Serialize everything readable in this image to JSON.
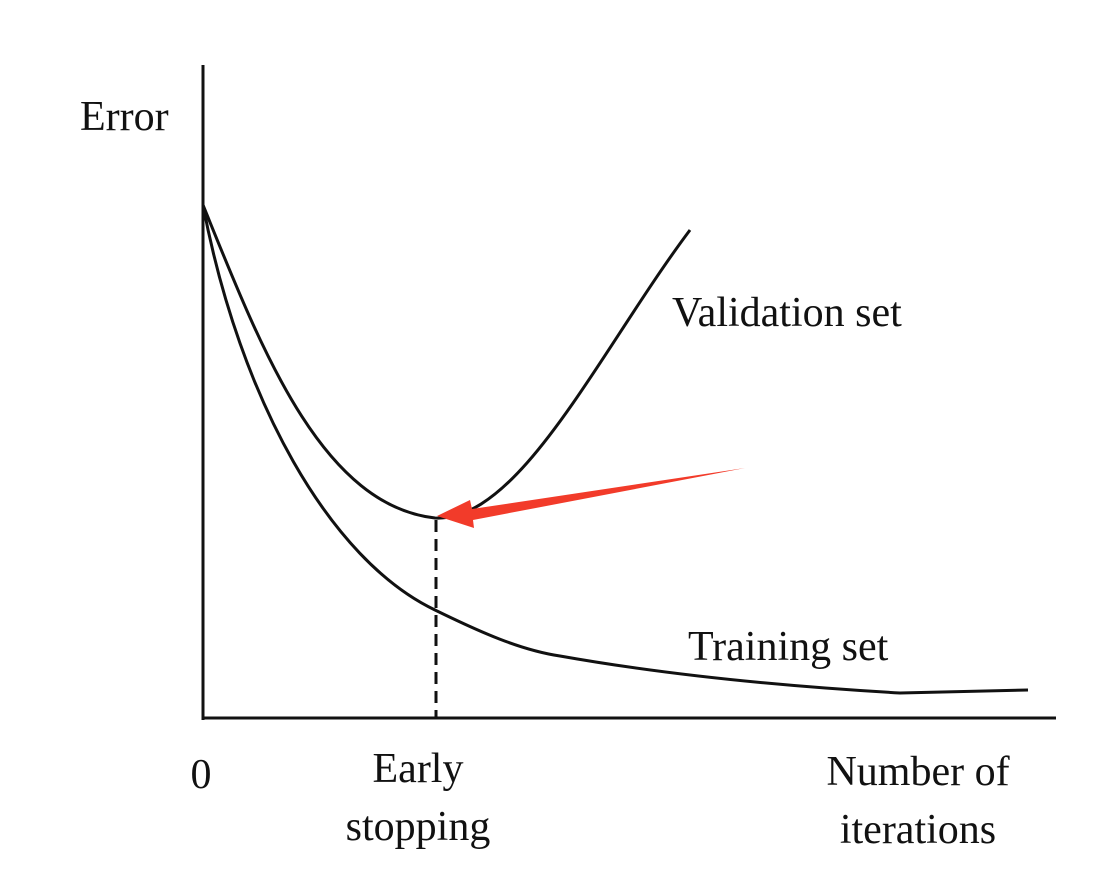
{
  "axes": {
    "y_label": "Error",
    "origin": "0",
    "x_label": [
      "Number of",
      "iterations"
    ]
  },
  "marker": {
    "label": [
      "Early",
      "stopping"
    ]
  },
  "curves": {
    "validation": "Validation set",
    "training": "Training set"
  }
}
